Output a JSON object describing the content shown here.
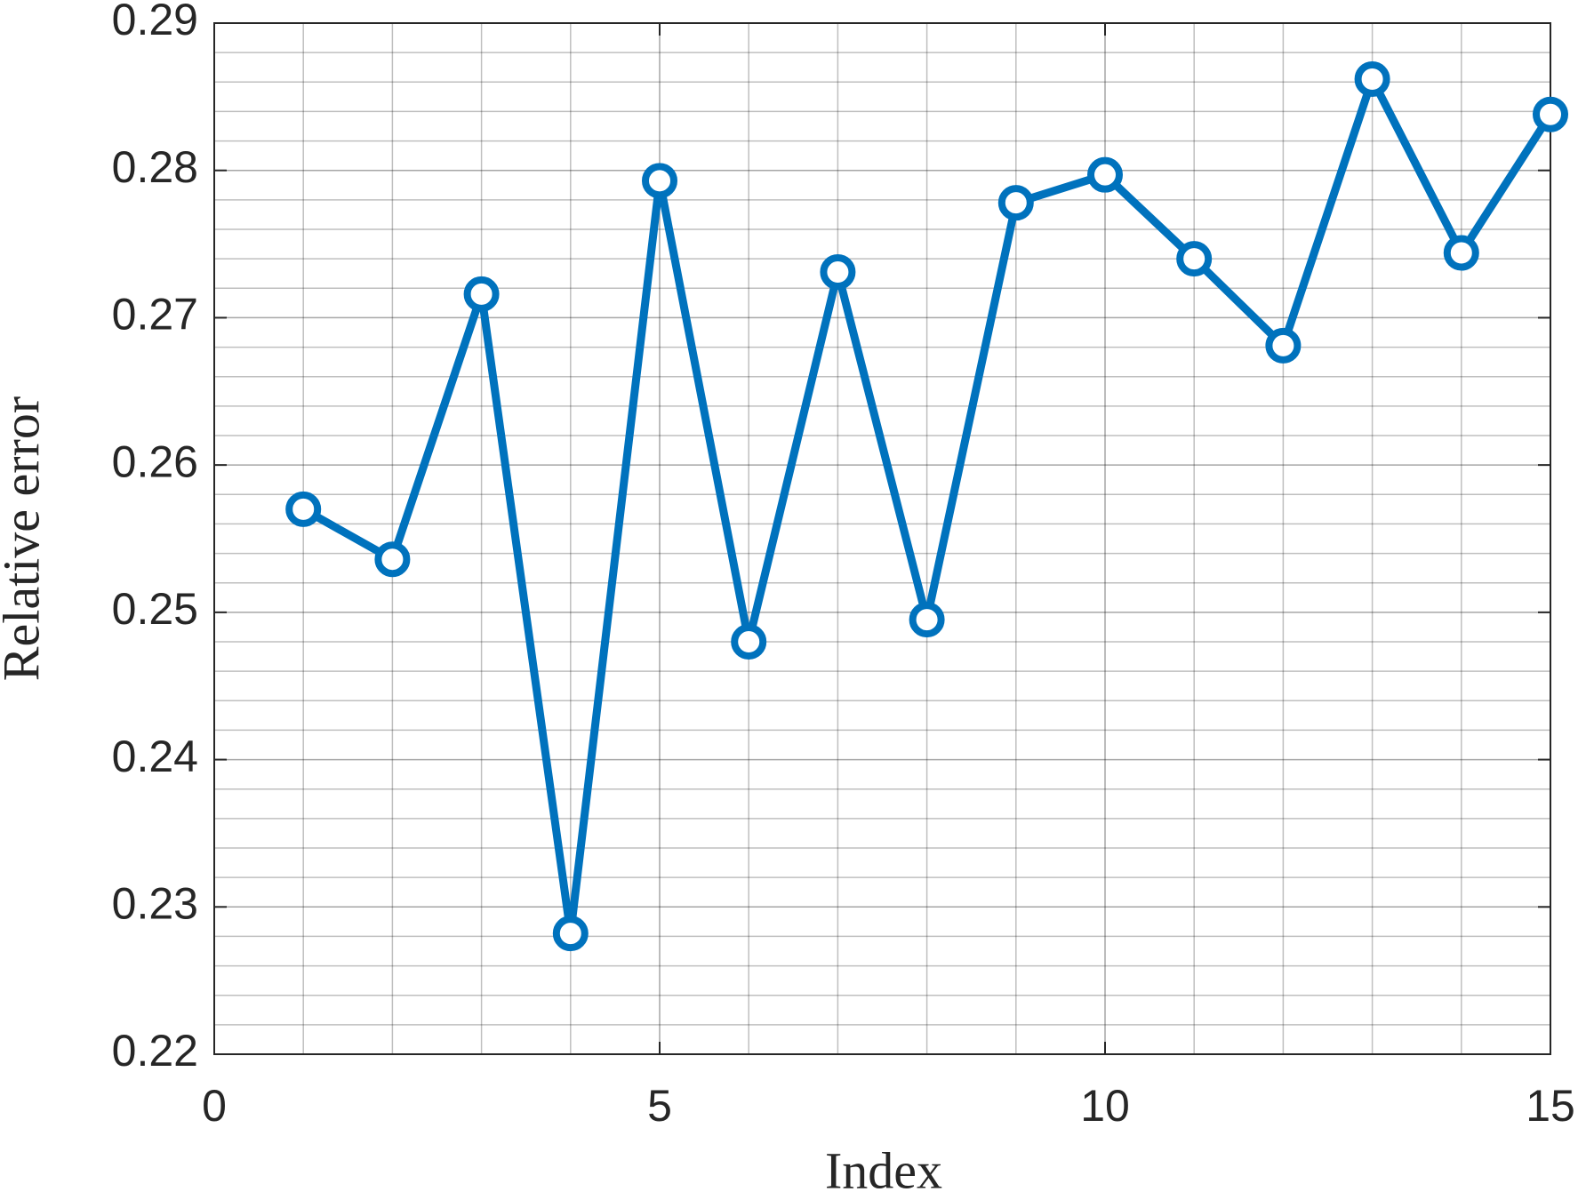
{
  "chart_data": {
    "type": "line",
    "x_label": "Index",
    "y_label": "Relative error",
    "x": [
      1,
      2,
      3,
      4,
      5,
      6,
      7,
      8,
      9,
      10,
      11,
      12,
      13,
      14,
      15
    ],
    "series": [
      {
        "color": "#0072bd",
        "marker": "circle",
        "values": [
          0.257,
          0.2536,
          0.2716,
          0.2282,
          0.2793,
          0.248,
          0.2731,
          0.2495,
          0.2778,
          0.2797,
          0.274,
          0.2681,
          0.2862,
          0.2744,
          0.2838
        ]
      }
    ],
    "xlim": [
      0,
      15
    ],
    "xticks": [
      0,
      5,
      10,
      15
    ],
    "xminorticks": [
      1,
      2,
      3,
      4,
      6,
      7,
      8,
      9,
      11,
      12,
      13,
      14
    ],
    "ylim": [
      0.22,
      0.29
    ],
    "yticks": [
      0.22,
      0.23,
      0.24,
      0.25,
      0.26,
      0.27,
      0.28,
      0.29
    ],
    "yminorticks": [
      0.222,
      0.224,
      0.226,
      0.228,
      0.232,
      0.234,
      0.236,
      0.238,
      0.242,
      0.244,
      0.246,
      0.248,
      0.252,
      0.254,
      0.256,
      0.258,
      0.262,
      0.264,
      0.266,
      0.268,
      0.272,
      0.274,
      0.276,
      0.278,
      0.282,
      0.284,
      0.286,
      0.288
    ],
    "grid": true,
    "minor_grid": true
  }
}
